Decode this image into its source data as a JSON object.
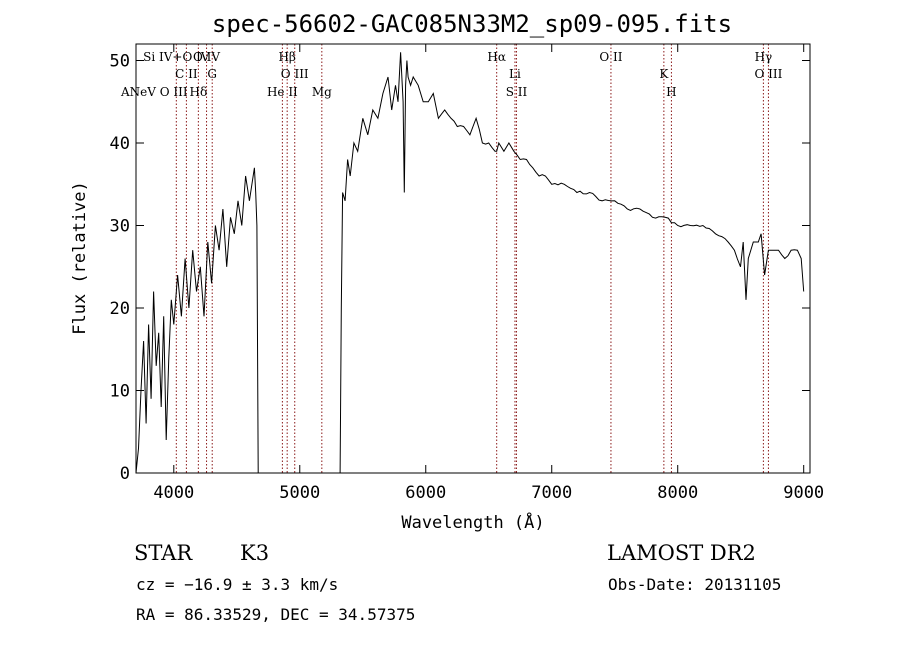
{
  "chart_data": {
    "type": "line",
    "title": "spec-56602-GAC085N33M2_sp09-095.fits",
    "xlabel": "Wavelength (Å)",
    "ylabel": "Flux (relative)",
    "xlim": [
      3700,
      9050
    ],
    "ylim": [
      0,
      52
    ],
    "xticks": [
      4000,
      5000,
      6000,
      7000,
      8000,
      9000
    ],
    "yticks": [
      0,
      10,
      20,
      30,
      40,
      50
    ],
    "grid": false,
    "series": [
      {
        "x": [
          3700,
          3720,
          3740,
          3760,
          3780,
          3800,
          3820,
          3840,
          3860,
          3880,
          3900,
          3920,
          3940,
          3960,
          3980,
          4000,
          4030,
          4060,
          4090,
          4120,
          4150,
          4180,
          4210,
          4240,
          4270,
          4300,
          4330,
          4360,
          4390,
          4420,
          4450,
          4480,
          4510,
          4540,
          4570,
          4600,
          4620,
          4640,
          4650,
          4660,
          4670,
          5320,
          5330,
          5340,
          5360,
          5380,
          5400,
          5430,
          5460,
          5500,
          5540,
          5580,
          5620,
          5660,
          5700,
          5730,
          5760,
          5780,
          5800,
          5820,
          5830,
          5840,
          5850,
          5860,
          5880,
          5900,
          5940,
          5980,
          6020,
          6060,
          6100,
          6150,
          6200,
          6250,
          6300,
          6350,
          6400,
          6450,
          6500,
          6550,
          6563,
          6580,
          6620,
          6660,
          6700,
          6750,
          6800,
          6850,
          6900,
          6950,
          7000,
          7100,
          7200,
          7300,
          7400,
          7500,
          7600,
          7700,
          7800,
          7900,
          8000,
          8100,
          8200,
          8300,
          8400,
          8450,
          8498,
          8520,
          8542,
          8560,
          8600,
          8640,
          8662,
          8690,
          8720,
          8760,
          8800,
          8850,
          8900,
          8950,
          8980,
          9000
        ],
        "y": [
          0,
          3,
          10,
          16,
          6,
          18,
          9,
          22,
          13,
          17,
          8,
          19,
          4,
          14,
          21,
          18,
          24,
          19,
          26,
          20,
          27,
          22,
          25,
          19,
          28,
          23,
          30,
          27,
          32,
          25,
          31,
          29,
          33,
          30,
          36,
          33,
          35,
          37,
          34,
          30,
          0,
          0,
          20,
          34,
          33,
          38,
          36,
          40,
          39,
          43,
          41,
          44,
          43,
          46,
          48,
          44,
          47,
          45,
          51,
          45,
          34,
          47,
          50,
          48,
          47,
          48,
          47,
          45,
          45,
          46,
          43,
          44,
          43,
          42,
          42,
          41,
          43,
          40,
          40,
          39,
          39,
          40,
          39,
          40,
          39,
          38,
          38,
          37,
          36,
          36,
          35,
          35,
          34,
          34,
          33,
          33,
          32,
          32,
          31,
          31,
          30,
          30,
          30,
          29,
          28,
          27,
          25,
          28,
          21,
          26,
          28,
          28,
          29,
          24,
          27,
          27,
          27,
          26,
          27,
          27,
          26,
          22
        ]
      }
    ],
    "line_markers": [
      {
        "label": "Si IV+O IV",
        "wavelength": 4020
      },
      {
        "label": "C II",
        "wavelength": 4100
      },
      {
        "label": "Hδ",
        "wavelength": 4195
      },
      {
        "label": "O IV",
        "wavelength": 4260
      },
      {
        "label": "G",
        "wavelength": 4305
      },
      {
        "label": "He II",
        "wavelength": 4862
      },
      {
        "label": "Hβ",
        "wavelength": 4900
      },
      {
        "label": "O III",
        "wavelength": 4960
      },
      {
        "label": "Mg",
        "wavelength": 5175
      },
      {
        "label": "Hα",
        "wavelength": 6563
      },
      {
        "label": "Li",
        "wavelength": 6708
      },
      {
        "label": "S II",
        "wavelength": 6720
      },
      {
        "label": "O II",
        "wavelength": 7470
      },
      {
        "label": "K",
        "wavelength": 7890
      },
      {
        "label": "H",
        "wavelength": 7950
      },
      {
        "label": "Hγ",
        "wavelength": 8680
      },
      {
        "label": "O III",
        "wavelength": 8720
      }
    ],
    "edge_label_stack": "ANeV O III"
  },
  "info": {
    "object_class": "STAR",
    "subclass": "K3",
    "survey": "LAMOST DR2",
    "cz": "cz = −16.9 ± 3.3 km/s",
    "obs_date": "Obs-Date: 20131105",
    "coords": "RA =  86.33529, DEC =  34.57375"
  }
}
